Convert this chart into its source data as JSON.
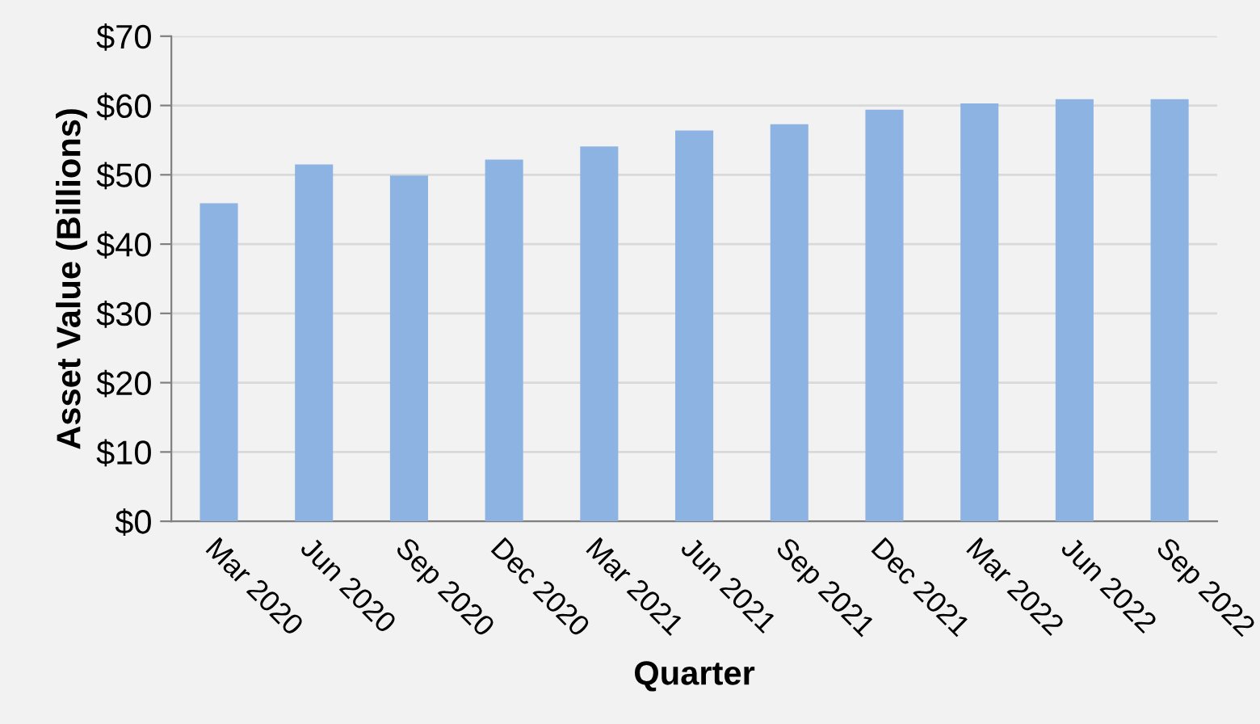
{
  "chart_data": {
    "type": "bar",
    "xlabel": "Quarter",
    "ylabel": "Asset Value (Billions)",
    "categories": [
      "Mar 2020",
      "Jun 2020",
      "Sep 2020",
      "Dec 2020",
      "Mar 2021",
      "Jun 2021",
      "Sep 2021",
      "Dec 2021",
      "Mar 2022",
      "Jun 2022",
      "Sep 2022"
    ],
    "values": [
      45.9,
      51.5,
      49.9,
      52.2,
      54.1,
      56.4,
      57.3,
      59.4,
      60.3,
      60.9,
      60.9
    ],
    "color": "#8db3e2",
    "ylim": [
      0,
      70
    ],
    "yticks": [
      {
        "value": 0,
        "label": "$0"
      },
      {
        "value": 10,
        "label": "$10"
      },
      {
        "value": 20,
        "label": "$20"
      },
      {
        "value": 30,
        "label": "$30"
      },
      {
        "value": 40,
        "label": "$40"
      },
      {
        "value": 50,
        "label": "$50"
      },
      {
        "value": 60,
        "label": "$60"
      },
      {
        "value": 70,
        "label": "$70"
      }
    ],
    "grid": "y",
    "legend": false
  }
}
